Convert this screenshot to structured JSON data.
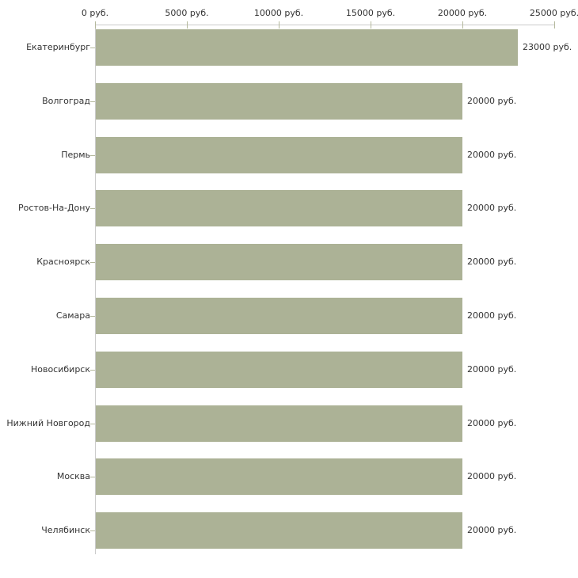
{
  "chart_data": {
    "type": "bar",
    "orientation": "horizontal",
    "title": "",
    "xlabel": "",
    "ylabel": "",
    "categories": [
      "Екатеринбург",
      "Волгоград",
      "Пермь",
      "Ростов-На-Дону",
      "Красноярск",
      "Самара",
      "Новосибирск",
      "Нижний Новгород",
      "Москва",
      "Челябинск"
    ],
    "values": [
      23000,
      20000,
      20000,
      20000,
      20000,
      20000,
      20000,
      20000,
      20000,
      20000
    ],
    "value_labels": [
      "23000 руб.",
      "20000 руб.",
      "20000 руб.",
      "20000 руб.",
      "20000 руб.",
      "20000 руб.",
      "20000 руб.",
      "20000 руб.",
      "20000 руб.",
      "20000 руб."
    ],
    "x_ticks": [
      0,
      5000,
      10000,
      15000,
      20000,
      25000
    ],
    "x_tick_labels": [
      "0 руб.",
      "5000 руб.",
      "10000 руб.",
      "15000 руб.",
      "20000 руб.",
      "25000 руб."
    ],
    "xlim": [
      0,
      25000
    ],
    "unit": "руб.",
    "grid": "off",
    "legend_position": "none",
    "axis_position": "top",
    "colors": {
      "bar_fill": "#acb296",
      "axis_line": "#cbcbcb",
      "tick_mark": "#b4b89c",
      "text": "#333333",
      "background": "#ffffff"
    }
  }
}
